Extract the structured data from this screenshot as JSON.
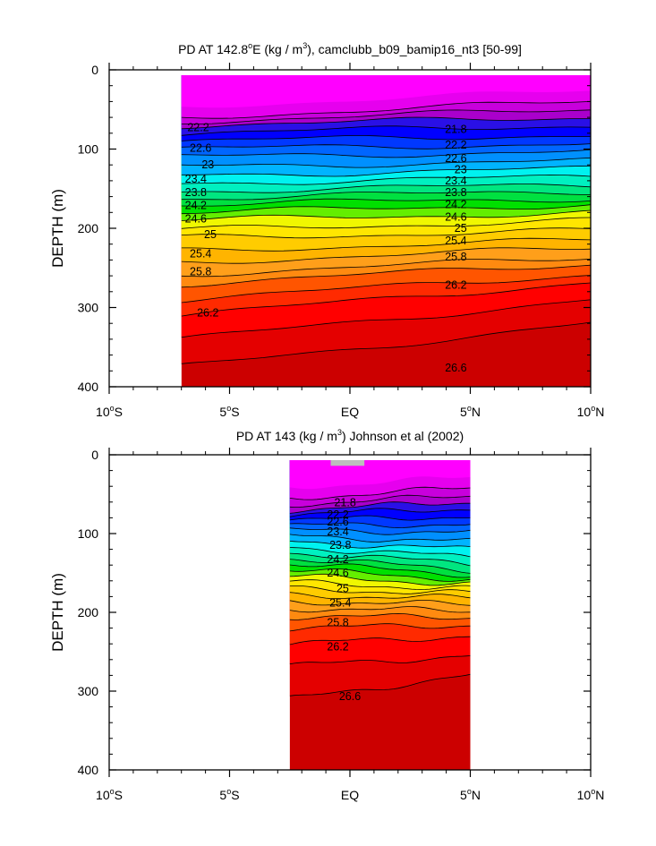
{
  "chart_data": [
    {
      "type": "contour",
      "title_main": "PD AT 142.8",
      "title_deg": "o",
      "title_lon": "E (kg / m",
      "title_sup": "3",
      "title_rest": "), camclubb_b09_bamip16_nt3 [50-99]",
      "ylabel": "DEPTH (m)",
      "ylim": [
        0,
        400
      ],
      "xlim": [
        -10,
        10
      ],
      "data_x_range": [
        -7,
        10
      ],
      "yticks": [
        "0",
        "100",
        "200",
        "300",
        "400"
      ],
      "xticks": [
        {
          "num": "10",
          "deg": "o",
          "suf": "S"
        },
        {
          "num": "5",
          "deg": "o",
          "suf": "S"
        },
        {
          "num": "EQ",
          "deg": "",
          "suf": ""
        },
        {
          "num": "5",
          "deg": "o",
          "suf": "N"
        },
        {
          "num": "10",
          "deg": "o",
          "suf": "N"
        }
      ],
      "contour_levels": [
        21.8,
        22.0,
        22.2,
        22.4,
        22.6,
        22.8,
        23.0,
        23.2,
        23.4,
        23.6,
        23.8,
        24.0,
        24.2,
        24.4,
        24.6,
        24.8,
        25.0,
        25.2,
        25.4,
        25.6,
        25.8,
        26.0,
        26.2,
        26.4,
        26.6
      ],
      "contour_depths_at_west": [
        60,
        65,
        70,
        80,
        90,
        100,
        110,
        122,
        133,
        143,
        153,
        162,
        170,
        180,
        190,
        202,
        212,
        228,
        243,
        258,
        270,
        290,
        310,
        340,
        375
      ],
      "contour_depths_at_east": [
        40,
        50,
        60,
        70,
        82,
        93,
        103,
        115,
        125,
        135,
        145,
        153,
        162,
        170,
        180,
        190,
        203,
        215,
        225,
        237,
        245,
        258,
        268,
        290,
        320
      ],
      "contour_labels": [
        {
          "x": -6.3,
          "y": 73,
          "text": "22.2"
        },
        {
          "x": -6.2,
          "y": 99,
          "text": "22.6"
        },
        {
          "x": -5.9,
          "y": 120,
          "text": "23"
        },
        {
          "x": -6.4,
          "y": 138,
          "text": "23.4"
        },
        {
          "x": -6.4,
          "y": 155,
          "text": "23.8"
        },
        {
          "x": -6.4,
          "y": 171,
          "text": "24.2"
        },
        {
          "x": -6.4,
          "y": 188,
          "text": "24.6"
        },
        {
          "x": -5.8,
          "y": 208,
          "text": "25"
        },
        {
          "x": -6.2,
          "y": 232,
          "text": "25.4"
        },
        {
          "x": -6.2,
          "y": 255,
          "text": "25.8"
        },
        {
          "x": -5.9,
          "y": 307,
          "text": "26.2"
        },
        {
          "x": 4.4,
          "y": 75,
          "text": "21.8"
        },
        {
          "x": 4.4,
          "y": 95,
          "text": "22.2"
        },
        {
          "x": 4.4,
          "y": 112,
          "text": "22.6"
        },
        {
          "x": 4.6,
          "y": 126,
          "text": "23"
        },
        {
          "x": 4.4,
          "y": 140,
          "text": "23.4"
        },
        {
          "x": 4.4,
          "y": 155,
          "text": "23.8"
        },
        {
          "x": 4.4,
          "y": 170,
          "text": "24.2"
        },
        {
          "x": 4.4,
          "y": 186,
          "text": "24.6"
        },
        {
          "x": 4.6,
          "y": 200,
          "text": "25"
        },
        {
          "x": 4.4,
          "y": 216,
          "text": "25.4"
        },
        {
          "x": 4.4,
          "y": 236,
          "text": "25.8"
        },
        {
          "x": 4.4,
          "y": 272,
          "text": "26.2"
        },
        {
          "x": 4.4,
          "y": 376,
          "text": "26.6"
        }
      ],
      "missing_areas": [
        {
          "x": [
            8.3,
            9.4
          ],
          "y": [
            0,
            5
          ]
        }
      ]
    },
    {
      "type": "contour",
      "title_main": "PD AT 143 (kg / m",
      "title_deg": "",
      "title_lon": "",
      "title_sup": "3",
      "title_rest": ") Johnson et al (2002)",
      "ylabel": "DEPTH (m)",
      "ylim": [
        0,
        400
      ],
      "xlim": [
        -10,
        10
      ],
      "data_x_range": [
        -2.5,
        5
      ],
      "yticks": [
        "0",
        "100",
        "200",
        "300",
        "400"
      ],
      "xticks": [
        {
          "num": "10",
          "deg": "o",
          "suf": "S"
        },
        {
          "num": "5",
          "deg": "o",
          "suf": "S"
        },
        {
          "num": "EQ",
          "deg": "",
          "suf": ""
        },
        {
          "num": "5",
          "deg": "o",
          "suf": "N"
        },
        {
          "num": "10",
          "deg": "o",
          "suf": "N"
        }
      ],
      "contour_levels": [
        21.8,
        22.0,
        22.2,
        22.4,
        22.6,
        22.8,
        23.0,
        23.2,
        23.4,
        23.6,
        23.8,
        24.0,
        24.2,
        24.4,
        24.6,
        24.8,
        25.0,
        25.2,
        25.4,
        25.6,
        25.8,
        26.0,
        26.2,
        26.4,
        26.6
      ],
      "contour_depths_at_west": [
        55,
        63,
        70,
        76,
        83,
        90,
        96,
        103,
        110,
        117,
        124,
        131,
        138,
        146,
        154,
        162,
        170,
        178,
        186,
        195,
        205,
        220,
        240,
        268,
        310
      ],
      "contour_depths_at_east": [
        42,
        52,
        60,
        68,
        78,
        88,
        98,
        110,
        120,
        130,
        138,
        146,
        152,
        158,
        164,
        170,
        176,
        182,
        190,
        198,
        206,
        216,
        230,
        255,
        280
      ],
      "contour_labels": [
        {
          "x": -0.2,
          "y": 61,
          "text": "21.8"
        },
        {
          "x": -0.5,
          "y": 76,
          "text": "22.2"
        },
        {
          "x": -0.5,
          "y": 85,
          "text": "22.6"
        },
        {
          "x": -0.5,
          "y": 98,
          "text": "23.4"
        },
        {
          "x": -0.4,
          "y": 115,
          "text": "23.8"
        },
        {
          "x": -0.5,
          "y": 133,
          "text": "24.2"
        },
        {
          "x": -0.5,
          "y": 150,
          "text": "24.6"
        },
        {
          "x": -0.3,
          "y": 170,
          "text": "25"
        },
        {
          "x": -0.4,
          "y": 188,
          "text": "25.4"
        },
        {
          "x": -0.5,
          "y": 213,
          "text": "25.8"
        },
        {
          "x": -0.5,
          "y": 244,
          "text": "26.2"
        },
        {
          "x": 0.0,
          "y": 307,
          "text": "26.6"
        }
      ],
      "missing_areas": [
        {
          "x": [
            -0.8,
            0.6
          ],
          "y": [
            0,
            14
          ]
        },
        {
          "x": [
            2.5,
            5
          ],
          "y": [
            0,
            6
          ]
        }
      ]
    }
  ]
}
